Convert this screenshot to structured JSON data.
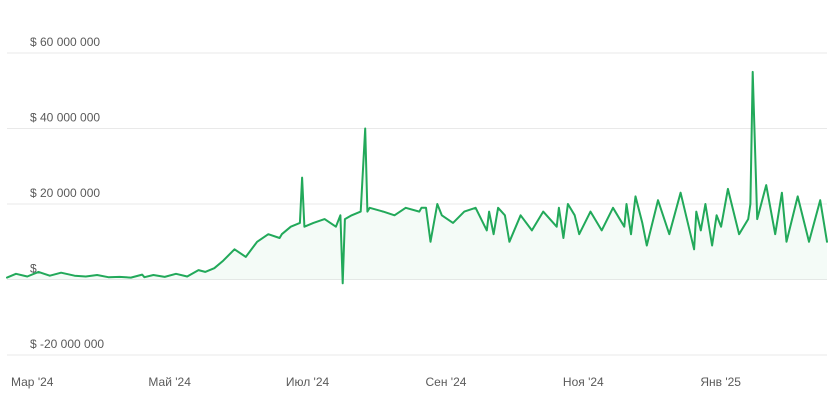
{
  "chart_data": {
    "type": "line",
    "title": "",
    "xlabel": "",
    "ylabel": "",
    "x_tick_labels": [
      "Мар '24",
      "Май '24",
      "Июл '24",
      "Сен '24",
      "Ноя '24",
      "Янв '25"
    ],
    "x_tick_dates": [
      "2024-03-01",
      "2024-05-01",
      "2024-07-01",
      "2024-09-01",
      "2024-11-01",
      "2025-01-01"
    ],
    "x_range": [
      "2024-03-01",
      "2025-02-28"
    ],
    "y_tick_labels": [
      "$ 60 000 000",
      "$ 40 000 000",
      "$ 20 000 000",
      "$",
      "$ -20 000 000"
    ],
    "y_tick_values": [
      60000000,
      40000000,
      20000000,
      0,
      -20000000
    ],
    "ylim": [
      -20000000,
      60000000
    ],
    "grid": true,
    "legend": "none",
    "colors": {
      "line": "#22a95a",
      "grid": "#e9e9e9",
      "labels": "#5a5a5a"
    },
    "series": [
      {
        "x": [
          "2024-03-01",
          "2024-03-05",
          "2024-03-10",
          "2024-03-15",
          "2024-03-20",
          "2024-03-25",
          "2024-03-31",
          "2024-04-05",
          "2024-04-10",
          "2024-04-15",
          "2024-04-20",
          "2024-04-25",
          "2024-04-30",
          "2024-05-01",
          "2024-05-05",
          "2024-05-10",
          "2024-05-15",
          "2024-05-20",
          "2024-05-25",
          "2024-05-28",
          "2024-06-01",
          "2024-06-05",
          "2024-06-10",
          "2024-06-15",
          "2024-06-20",
          "2024-06-25",
          "2024-06-30",
          "2024-07-01",
          "2024-07-05",
          "2024-07-09",
          "2024-07-10",
          "2024-07-11",
          "2024-07-15",
          "2024-07-20",
          "2024-07-25",
          "2024-07-27",
          "2024-07-28",
          "2024-07-29",
          "2024-08-01",
          "2024-08-05",
          "2024-08-07",
          "2024-08-08",
          "2024-08-09",
          "2024-08-15",
          "2024-08-20",
          "2024-08-25",
          "2024-08-31",
          "2024-09-01",
          "2024-09-03",
          "2024-09-05",
          "2024-09-08",
          "2024-09-10",
          "2024-09-15",
          "2024-09-20",
          "2024-09-25",
          "2024-09-30",
          "2024-10-01",
          "2024-10-03",
          "2024-10-05",
          "2024-10-08",
          "2024-10-10",
          "2024-10-15",
          "2024-10-20",
          "2024-10-25",
          "2024-10-31",
          "2024-11-01",
          "2024-11-03",
          "2024-11-05",
          "2024-11-08",
          "2024-11-10",
          "2024-11-15",
          "2024-11-20",
          "2024-11-25",
          "2024-11-30",
          "2024-12-01",
          "2024-12-03",
          "2024-12-05",
          "2024-12-08",
          "2024-12-10",
          "2024-12-15",
          "2024-12-20",
          "2024-12-25",
          "2024-12-31",
          "2025-01-01",
          "2025-01-03",
          "2025-01-05",
          "2025-01-08",
          "2025-01-10",
          "2025-01-12",
          "2025-01-15",
          "2025-01-20",
          "2025-01-24",
          "2025-01-25",
          "2025-01-26",
          "2025-01-28",
          "2025-02-01",
          "2025-02-05",
          "2025-02-08",
          "2025-02-10",
          "2025-02-15",
          "2025-02-20",
          "2025-02-25",
          "2025-02-28"
        ],
        "values": [
          500000,
          1500000,
          800000,
          2000000,
          1000000,
          1800000,
          1000000,
          800000,
          1200000,
          600000,
          700000,
          500000,
          1300000,
          600000,
          1200000,
          700000,
          1500000,
          800000,
          2500000,
          2000000,
          3000000,
          5000000,
          8000000,
          6000000,
          10000000,
          12000000,
          11000000,
          12000000,
          14000000,
          15000000,
          27000000,
          14000000,
          15000000,
          16000000,
          14000000,
          17000000,
          -1000000,
          16000000,
          17000000,
          18000000,
          40000000,
          18000000,
          19000000,
          18000000,
          17000000,
          19000000,
          18000000,
          19000000,
          19000000,
          10000000,
          20000000,
          17000000,
          15000000,
          18000000,
          19000000,
          13000000,
          18000000,
          12000000,
          19000000,
          17000000,
          10000000,
          17000000,
          13000000,
          18000000,
          14000000,
          19000000,
          11000000,
          20000000,
          17000000,
          12000000,
          18000000,
          13000000,
          19000000,
          14000000,
          20000000,
          12000000,
          22000000,
          15000000,
          9000000,
          21000000,
          12000000,
          23000000,
          8000000,
          18000000,
          13000000,
          20000000,
          9000000,
          17000000,
          14000000,
          24000000,
          12000000,
          16000000,
          20000000,
          55000000,
          16000000,
          25000000,
          12000000,
          23000000,
          10000000,
          22000000,
          10000000,
          21000000,
          10000000
        ]
      }
    ]
  }
}
